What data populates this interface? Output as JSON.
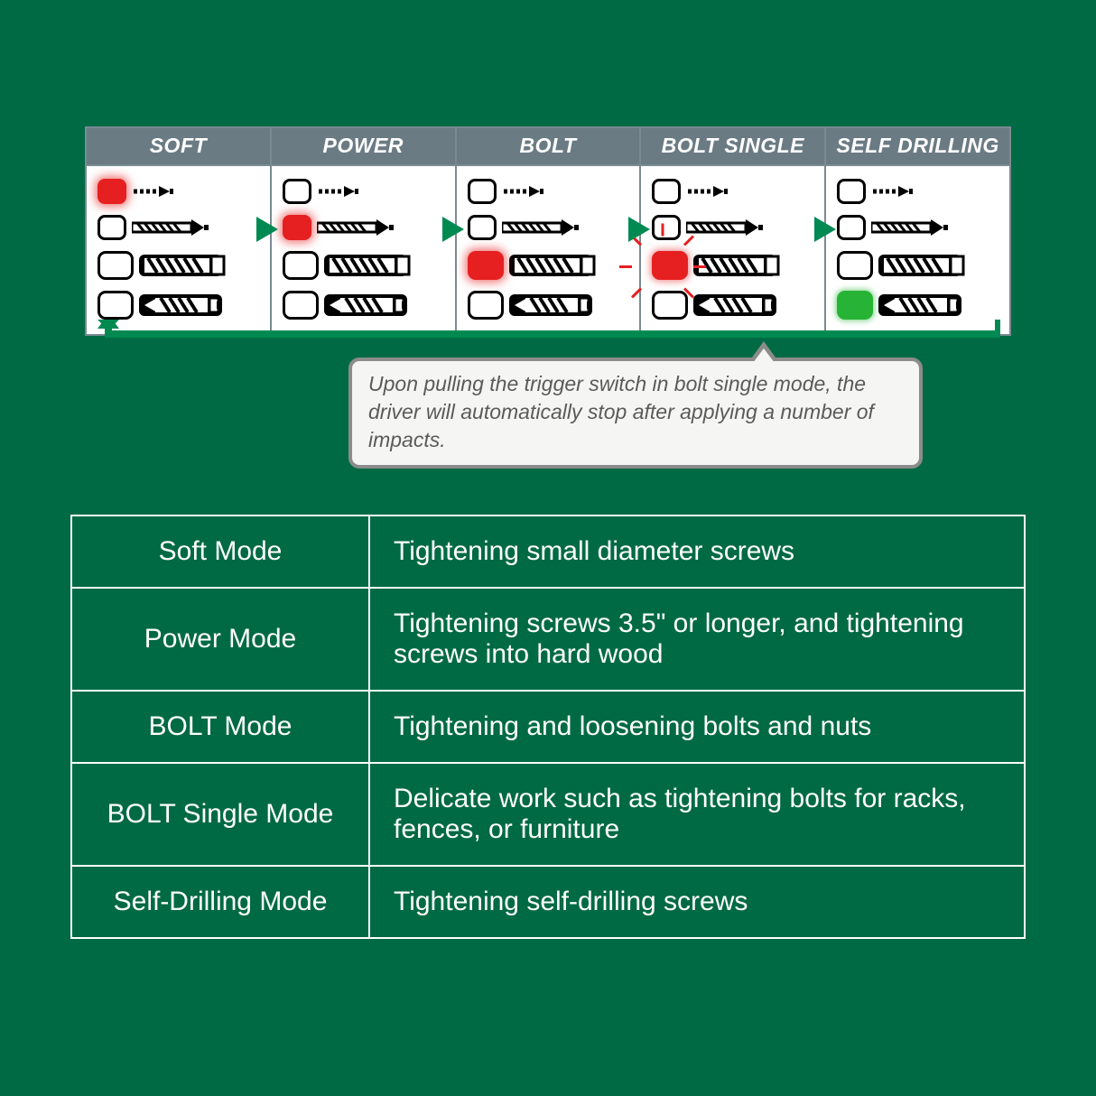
{
  "colors": {
    "background": "#006a44",
    "header_bg": "#6b7b84",
    "header_fg": "#ffffff",
    "cell_border": "#7a8a92",
    "arrow": "#008a52",
    "lit_red": "#e62020",
    "lit_green": "#27b335",
    "callout_bg": "#f5f5f3",
    "callout_border": "#8c8c8c",
    "callout_text": "#5a5a5a",
    "table_text": "#ffffff",
    "table_border": "#ffffff"
  },
  "diagram": {
    "modes": [
      {
        "label": "SOFT",
        "lit_index": 0,
        "lit_color": "red",
        "flashing": false
      },
      {
        "label": "POWER",
        "lit_index": 1,
        "lit_color": "red",
        "flashing": false
      },
      {
        "label": "BOLT",
        "lit_index": 2,
        "lit_color": "red",
        "flashing": false
      },
      {
        "label": "BOLT SINGLE",
        "lit_index": 2,
        "lit_color": "red",
        "flashing": true
      },
      {
        "label": "SELF DRILLING",
        "lit_index": 3,
        "lit_color": "green",
        "flashing": false
      }
    ],
    "row_count": 4,
    "wide_rows": [
      2,
      3
    ]
  },
  "callout": {
    "text": "Upon pulling the trigger switch in bolt single mode, the driver will automatically stop after applying a number of impacts."
  },
  "table": [
    {
      "name": "Soft Mode",
      "desc": "Tightening small diameter screws"
    },
    {
      "name": "Power Mode",
      "desc": "Tightening screws 3.5\" or longer, and tightening screws into hard wood"
    },
    {
      "name": "BOLT Mode",
      "desc": "Tightening and loosening bolts and nuts"
    },
    {
      "name": "BOLT Single Mode",
      "desc": "Delicate work such as tightening bolts for racks, fences, or furniture"
    },
    {
      "name": "Self-Drilling Mode",
      "desc": "Tightening self-drilling screws"
    }
  ]
}
